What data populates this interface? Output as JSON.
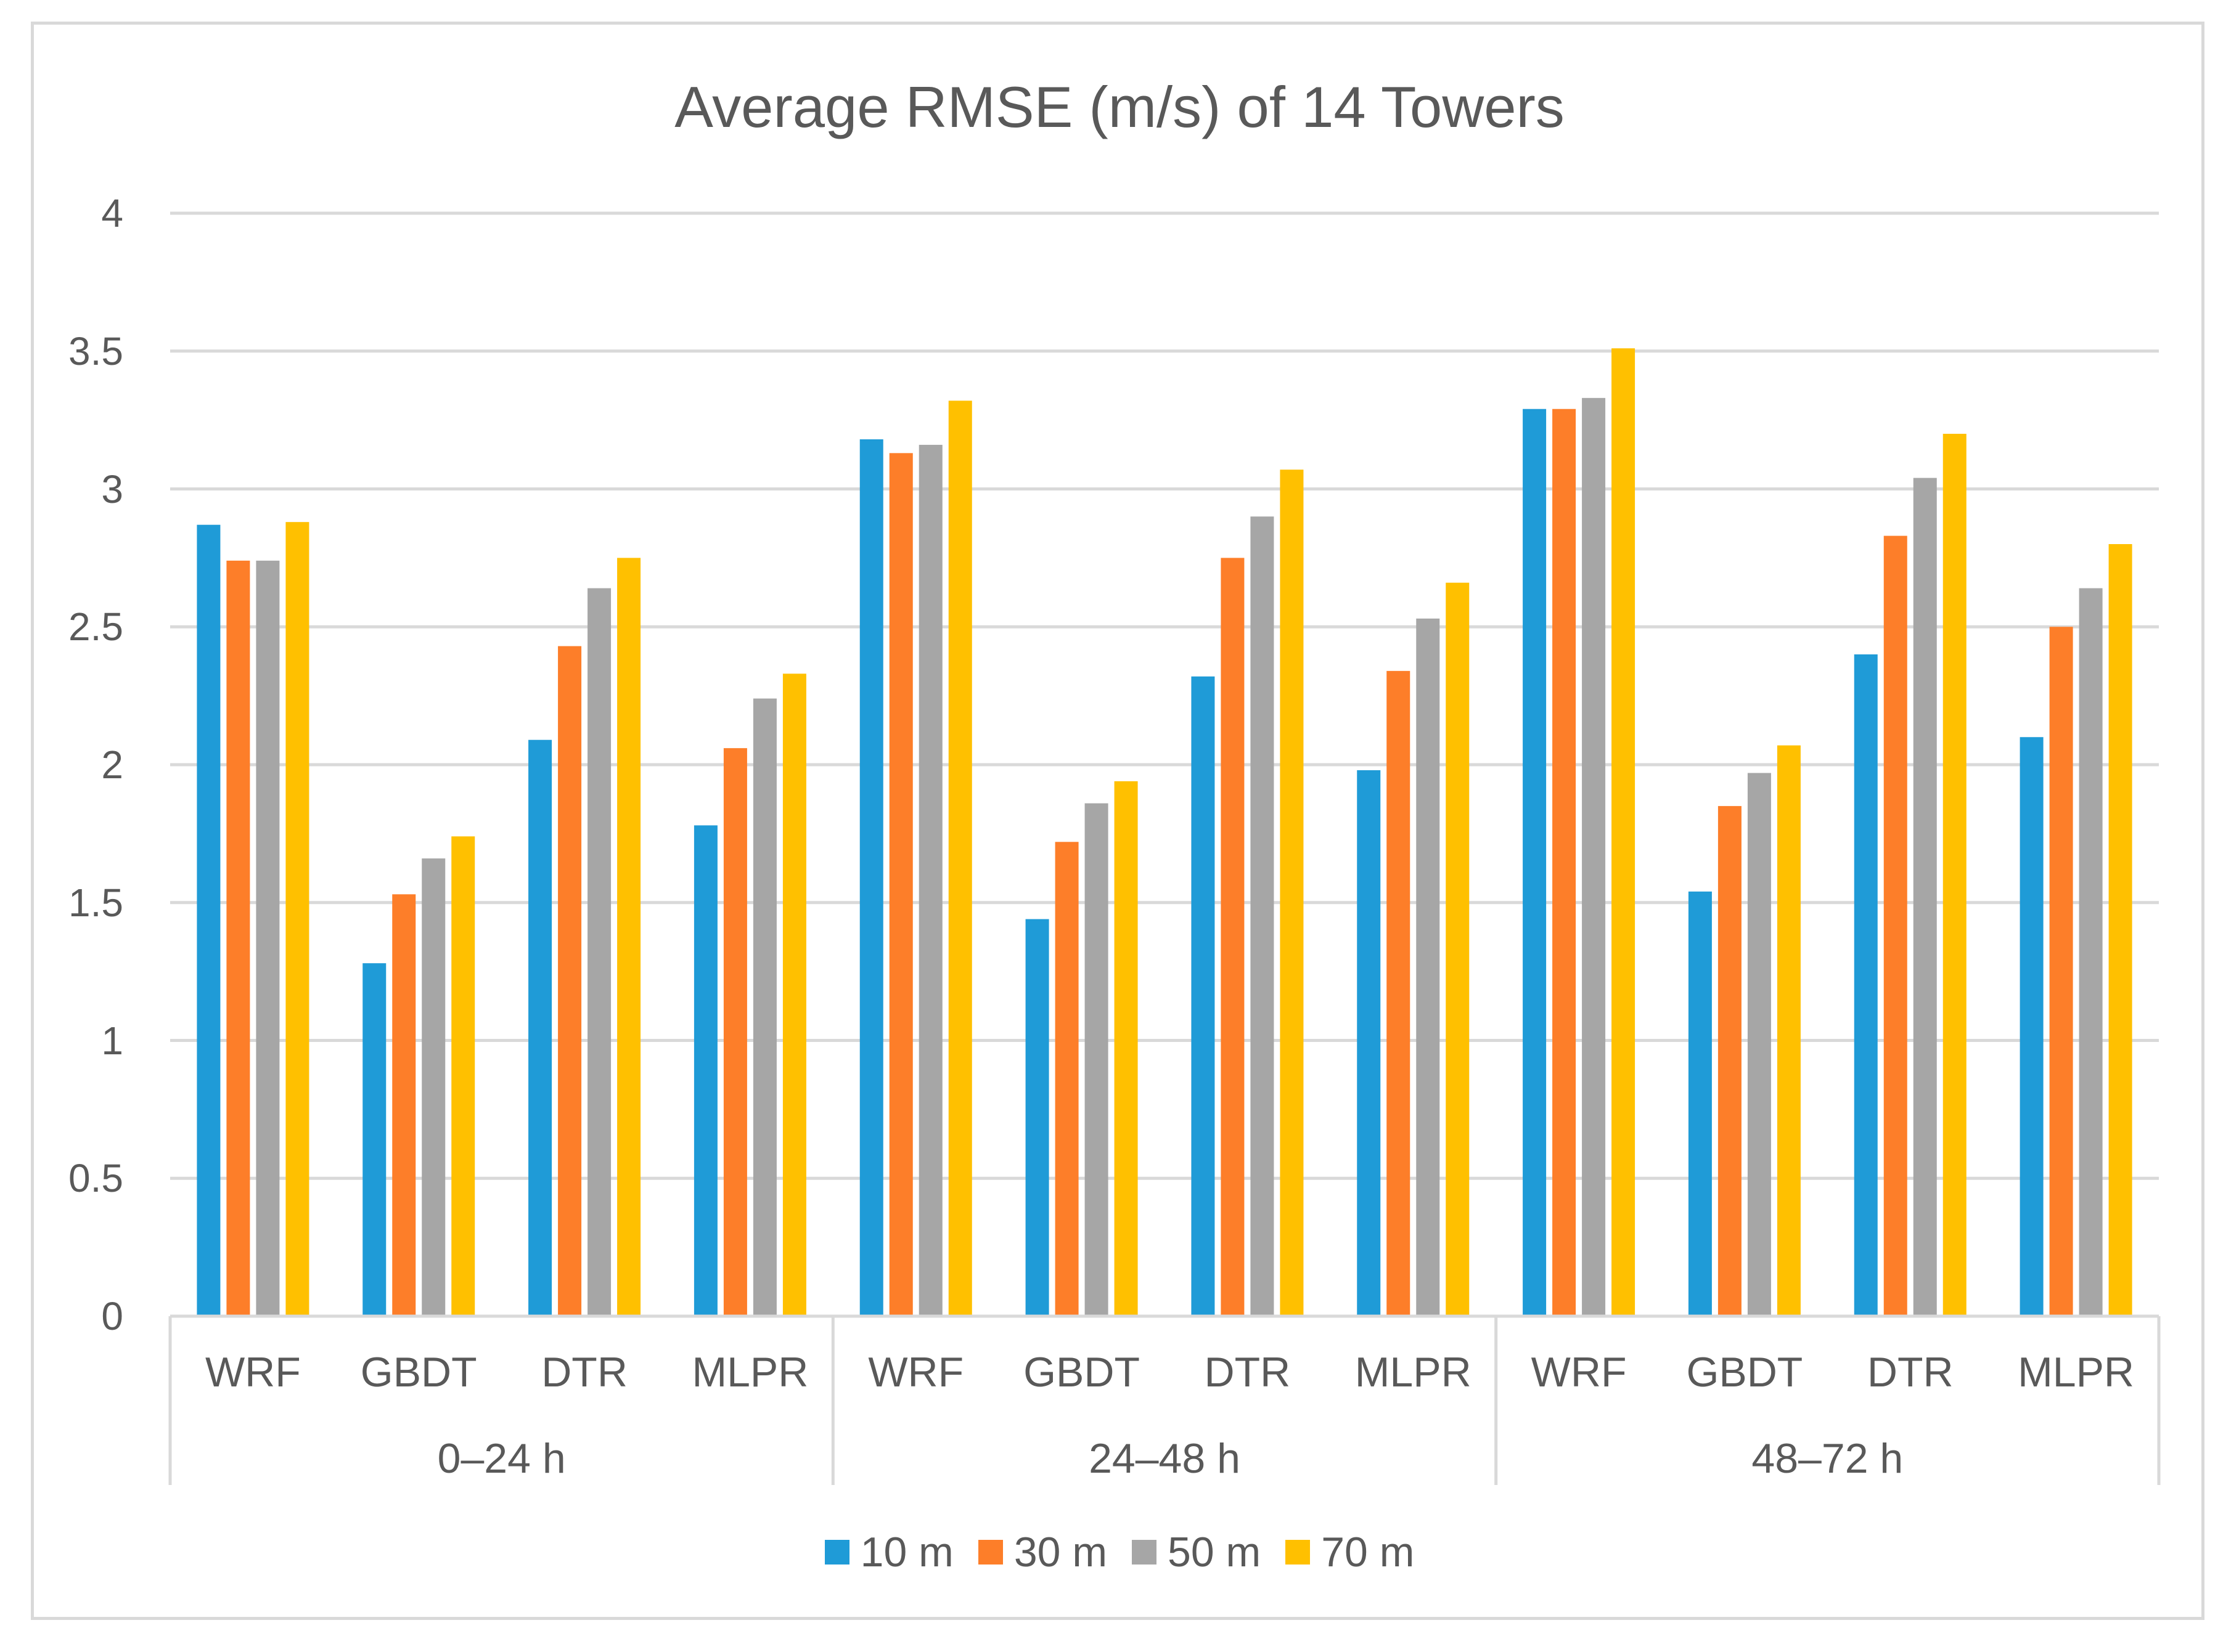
{
  "chart_data": {
    "type": "bar",
    "title": "Average RMSE (m/s) of 14 Towers",
    "xlabel": "",
    "ylabel": "",
    "ylim": [
      0,
      4
    ],
    "yticks": [
      "0",
      "0.5",
      "1",
      "1.5",
      "2",
      "2.5",
      "3",
      "3.5",
      "4"
    ],
    "groups": [
      "0–24 h",
      "24–48 h",
      "48–72 h"
    ],
    "categories": [
      "WRF",
      "GBDT",
      "DTR",
      "MLPR",
      "WRF",
      "GBDT",
      "DTR",
      "MLPR",
      "WRF",
      "GBDT",
      "DTR",
      "MLPR"
    ],
    "grid": true,
    "legend_position": "bottom",
    "series": [
      {
        "name": "10 m",
        "color": "#1f9bd7",
        "values": [
          2.87,
          1.28,
          2.09,
          1.78,
          3.18,
          1.44,
          2.32,
          1.98,
          3.29,
          1.54,
          2.4,
          2.1
        ]
      },
      {
        "name": "30 m",
        "color": "#fd7e29",
        "values": [
          2.74,
          1.53,
          2.43,
          2.06,
          3.13,
          1.72,
          2.75,
          2.34,
          3.29,
          1.85,
          2.83,
          2.5
        ]
      },
      {
        "name": "50 m",
        "color": "#a6a6a6",
        "values": [
          2.74,
          1.66,
          2.64,
          2.24,
          3.16,
          1.86,
          2.9,
          2.53,
          3.33,
          1.97,
          3.04,
          2.64
        ]
      },
      {
        "name": "70 m",
        "color": "#ffc000",
        "values": [
          2.88,
          1.74,
          2.75,
          2.33,
          3.32,
          1.94,
          3.07,
          2.66,
          3.51,
          2.07,
          3.2,
          2.8
        ]
      }
    ]
  }
}
